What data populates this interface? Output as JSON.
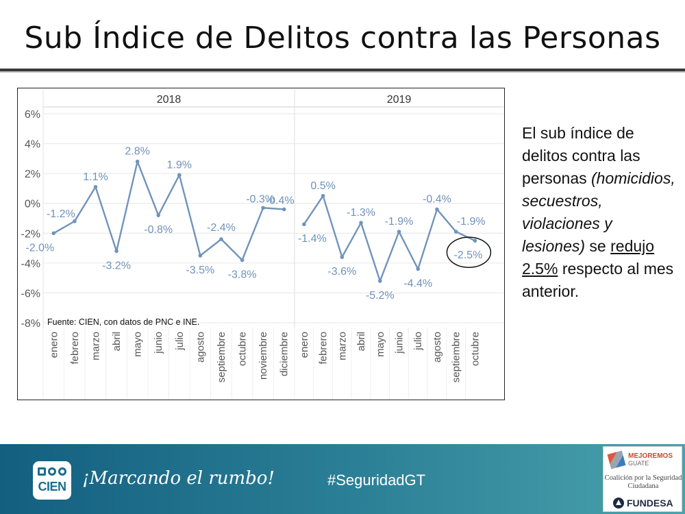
{
  "title": "Sub Índice de Delitos contra las Personas",
  "description": {
    "p1": "El sub índice de delitos contra las personas",
    "p2": "(homicidios, secuestros, violaciones y lesiones)",
    "p3": " se ",
    "p4": "redujo 2.5%",
    "p5": " respecto al mes anterior."
  },
  "footer": {
    "logo_text": "CIEN",
    "slogan": "¡Marcando el rumbo!",
    "hashtag": "#SeguridadGT",
    "partner_brand_line1": "MEJOREMOS",
    "partner_brand_line2": "GUATE",
    "partner_coalition": "Coalición por la Seguridad Ciudadana",
    "partner_fundesa": "FUNDESA"
  },
  "colors": {
    "line": "#7093bb",
    "label": "#6f92ba",
    "grid": "#e6e6e6",
    "footer_bg": "#2a7e95"
  },
  "chart_data": {
    "type": "line",
    "source_note": "Fuente: CIEN, con datos de PNC e INE.",
    "ylim": [
      -8,
      6
    ],
    "yticks": [
      "6%",
      "4%",
      "2%",
      "0%",
      "-2%",
      "-4%",
      "-6%",
      "-8%"
    ],
    "ytick_values": [
      6,
      4,
      2,
      0,
      -2,
      -4,
      -6,
      -8
    ],
    "panels": [
      {
        "year": "2018",
        "categories": [
          "enero",
          "febrero",
          "marzo",
          "abril",
          "mayo",
          "junio",
          "julio",
          "agosto",
          "septiembre",
          "octubre",
          "noviembre",
          "diciembre"
        ],
        "values": [
          -2.0,
          -1.2,
          1.1,
          -3.2,
          2.8,
          -0.8,
          1.9,
          -3.5,
          -2.4,
          -3.8,
          -0.3,
          -0.4
        ],
        "labels": [
          "-2.0%",
          "-1.2%",
          "1.1%",
          "-3.2%",
          "2.8%",
          "-0.8%",
          "1.9%",
          "-3.5%",
          "-2.4%",
          "-3.8%",
          "-0.3%",
          "-0.4%"
        ]
      },
      {
        "year": "2019",
        "categories": [
          "enero",
          "febrero",
          "marzo",
          "abril",
          "mayo",
          "junio",
          "julio",
          "agosto",
          "septiembre",
          "octubre"
        ],
        "values": [
          -1.4,
          0.5,
          -3.6,
          -1.3,
          -5.2,
          -1.9,
          -4.4,
          -0.4,
          -1.9,
          -2.5
        ],
        "labels": [
          "-1.4%",
          "0.5%",
          "-3.6%",
          "-1.3%",
          "-5.2%",
          "-1.9%",
          "-4.4%",
          "-0.4%",
          "-1.9%",
          "-2.5%"
        ]
      }
    ],
    "highlight": {
      "year": "2019",
      "month": "octubre",
      "value": -2.5
    }
  }
}
